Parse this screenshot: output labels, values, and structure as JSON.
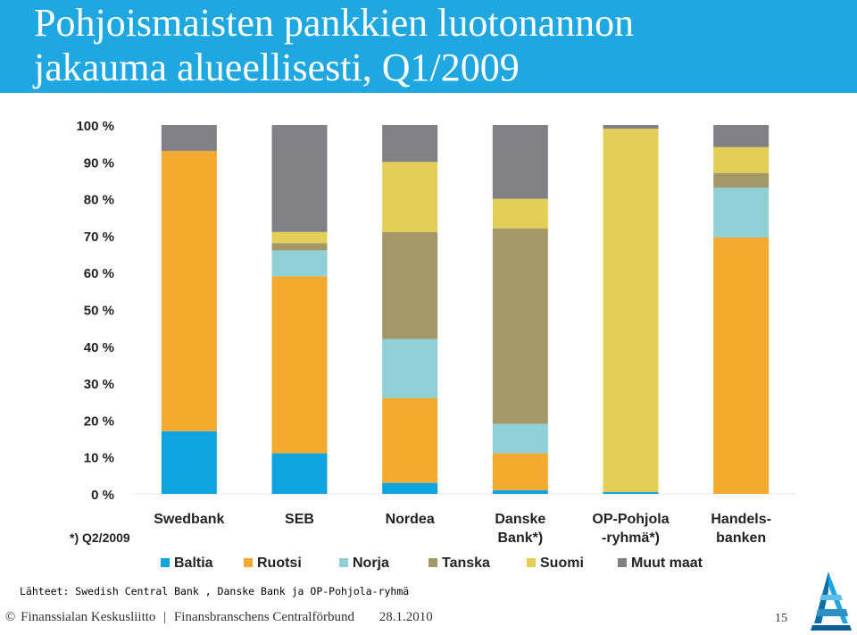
{
  "header": {
    "title_line1": "Pohjoismaisten pankkien luotonannon",
    "title_line2": "jakauma alueellisesti, Q1/2009"
  },
  "chart_data": {
    "type": "bar",
    "stacked": true,
    "title": "Pohjoismaisten pankkien luotonannon jakauma alueellisesti, Q1/2009",
    "categories": [
      [
        "Swedbank"
      ],
      [
        "SEB"
      ],
      [
        "Nordea"
      ],
      [
        "Danske",
        "Bank*)"
      ],
      [
        "OP-Pohjola",
        "-ryhmä*)"
      ],
      [
        "Handels-",
        "banken"
      ]
    ],
    "yticks": [
      "0 %",
      "10 %",
      "20 %",
      "30 %",
      "40 %",
      "50 %",
      "60 %",
      "70 %",
      "80 %",
      "90 %",
      "100 %"
    ],
    "ylim": [
      0,
      100
    ],
    "note": "*) Q2/2009",
    "series": [
      {
        "name": "Baltia",
        "color": "#0fa3e0",
        "values": [
          17,
          11,
          3,
          1,
          0.5,
          0
        ]
      },
      {
        "name": "Ruotsi",
        "color": "#f4aa2e",
        "values": [
          76,
          48,
          23,
          10,
          0,
          69.5
        ]
      },
      {
        "name": "Norja",
        "color": "#8fcfd6",
        "values": [
          0,
          7,
          16,
          8,
          0,
          13.5
        ]
      },
      {
        "name": "Tanska",
        "color": "#a39968",
        "values": [
          0,
          2,
          29,
          53,
          0,
          4
        ]
      },
      {
        "name": "Suomi",
        "color": "#e3cf55",
        "values": [
          0,
          3,
          19,
          8,
          98.5,
          7
        ]
      },
      {
        "name": "Muut maat",
        "color": "#808085",
        "values": [
          7,
          29,
          10,
          20,
          1,
          6
        ]
      }
    ]
  },
  "source": "Lähteet: Swedish Central Bank , Danske Bank ja OP-Pohjola-ryhmä",
  "footer": {
    "copyright": "©",
    "org1": "Finanssialan Keskusliitto",
    "separator": "|",
    "org2": "Finansbranschens Centralförbund",
    "date": "28.1.2010",
    "page": "15"
  },
  "colors": {
    "title_band": "#1ea7e1",
    "grid": "#e6e6e6",
    "axis_text": "#222222"
  }
}
